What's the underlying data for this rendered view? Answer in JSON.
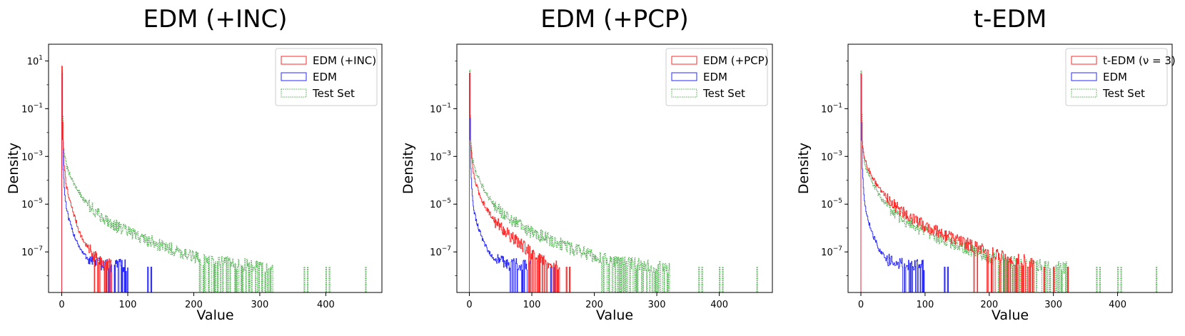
{
  "colors": {
    "red": "#ff2a2a",
    "blue": "#2a2aff",
    "green": "#2ca02c",
    "frame": "#000000",
    "legend_border": "#cccccc"
  },
  "chart_data": [
    {
      "type": "histogram",
      "title": "EDM (+INC)",
      "xlabel": "Value",
      "ylabel": "Density",
      "yscale": "log",
      "xlim": [
        -20,
        485
      ],
      "ylim": [
        2e-09,
        50
      ],
      "x_ticks": [
        {
          "value": 0,
          "label": "0"
        },
        {
          "value": 100,
          "label": "100"
        },
        {
          "value": 200,
          "label": "200"
        },
        {
          "value": 300,
          "label": "300"
        },
        {
          "value": 400,
          "label": "400"
        }
      ],
      "y_ticks": [
        {
          "value": 10,
          "base": "10",
          "exp": "1"
        },
        {
          "value": 0.1,
          "base": "10",
          "exp": "−1"
        },
        {
          "value": 0.001,
          "base": "10",
          "exp": "−3"
        },
        {
          "value": 1e-05,
          "base": "10",
          "exp": "−5"
        },
        {
          "value": 1e-07,
          "base": "10",
          "exp": "−7"
        }
      ],
      "legend_position": "upper-right",
      "series": [
        {
          "name": "EDM (+INC)",
          "color_key": "red",
          "line_style": "solid",
          "peak": 6,
          "points": [
            [
              0.5,
              6
            ],
            [
              1,
              0.05
            ],
            [
              2,
              0.002
            ],
            [
              4,
              0.0003
            ],
            [
              7,
              5e-05
            ],
            [
              10,
              2e-05
            ],
            [
              15,
              7e-06
            ],
            [
              20,
              2.5e-06
            ],
            [
              25,
              9e-07
            ],
            [
              30,
              4e-07
            ],
            [
              35,
              2.2e-07
            ],
            [
              40,
              1.5e-07
            ],
            [
              45,
              1e-07
            ],
            [
              50,
              7e-08
            ],
            [
              55,
              5e-08
            ],
            [
              60,
              4e-08
            ],
            [
              65,
              3e-08
            ],
            [
              70,
              3e-08
            ],
            [
              75,
              2.5e-08
            ]
          ],
          "max_x": 75
        },
        {
          "name": "EDM",
          "color_key": "blue",
          "line_style": "solid",
          "peak": 3,
          "points": [
            [
              0.5,
              3
            ],
            [
              1,
              0.01
            ],
            [
              2,
              0.0003
            ],
            [
              4,
              3e-05
            ],
            [
              7,
              6e-06
            ],
            [
              10,
              2.5e-06
            ],
            [
              15,
              9e-07
            ],
            [
              20,
              4e-07
            ],
            [
              25,
              2e-07
            ],
            [
              30,
              1e-07
            ],
            [
              35,
              7e-08
            ],
            [
              40,
              5e-08
            ],
            [
              50,
              4e-08
            ],
            [
              60,
              3e-08
            ],
            [
              80,
              3e-08
            ],
            [
              100,
              2.5e-08
            ]
          ],
          "max_x": 100,
          "sparse_x": [
            130,
            135
          ]
        },
        {
          "name": "Test Set",
          "color_key": "green",
          "line_style": "dotted",
          "peak": 4,
          "points": [
            [
              0.5,
              4
            ],
            [
              1,
              0.1
            ],
            [
              2,
              0.004
            ],
            [
              4,
              0.001
            ],
            [
              7,
              0.0004
            ],
            [
              10,
              0.00022
            ],
            [
              15,
              0.00011
            ],
            [
              20,
              6e-05
            ],
            [
              30,
              2e-05
            ],
            [
              40,
              9e-06
            ],
            [
              50,
              5e-06
            ],
            [
              60,
              3e-06
            ],
            [
              80,
              1.3e-06
            ],
            [
              100,
              7e-07
            ],
            [
              120,
              4e-07
            ],
            [
              140,
              2.5e-07
            ],
            [
              160,
              1.5e-07
            ],
            [
              180,
              1e-07
            ],
            [
              200,
              6e-08
            ],
            [
              220,
              4.5e-08
            ],
            [
              240,
              3.8e-08
            ],
            [
              260,
              3.2e-08
            ],
            [
              280,
              2.8e-08
            ],
            [
              300,
              2.5e-08
            ],
            [
              320,
              2.2e-08
            ]
          ],
          "max_x": 320,
          "sparse_x": [
            367,
            372,
            400,
            405,
            460
          ]
        }
      ]
    },
    {
      "type": "histogram",
      "title": "EDM (+PCP)",
      "xlabel": "Value",
      "ylabel": "Density",
      "yscale": "log",
      "xlim": [
        -20,
        485
      ],
      "ylim": [
        2e-09,
        50
      ],
      "x_ticks": [
        {
          "value": 0,
          "label": "0"
        },
        {
          "value": 100,
          "label": "100"
        },
        {
          "value": 200,
          "label": "200"
        },
        {
          "value": 300,
          "label": "300"
        },
        {
          "value": 400,
          "label": "400"
        }
      ],
      "y_ticks": [
        {
          "value": 0.1,
          "base": "10",
          "exp": "−1"
        },
        {
          "value": 0.001,
          "base": "10",
          "exp": "−3"
        },
        {
          "value": 1e-05,
          "base": "10",
          "exp": "−5"
        },
        {
          "value": 1e-07,
          "base": "10",
          "exp": "−7"
        }
      ],
      "legend_position": "upper-right",
      "series": [
        {
          "name": "EDM (+PCP)",
          "color_key": "red",
          "line_style": "solid",
          "peak": 3,
          "points": [
            [
              0.5,
              3
            ],
            [
              1,
              0.08
            ],
            [
              2,
              0.003
            ],
            [
              4,
              0.0006
            ],
            [
              7,
              0.00015
            ],
            [
              10,
              7e-05
            ],
            [
              15,
              3e-05
            ],
            [
              20,
              1.4e-05
            ],
            [
              30,
              5e-06
            ],
            [
              40,
              2e-06
            ],
            [
              50,
              1.1e-06
            ],
            [
              60,
              6e-07
            ],
            [
              70,
              3.5e-07
            ],
            [
              80,
              2.2e-07
            ],
            [
              90,
              1.4e-07
            ],
            [
              100,
              9e-08
            ],
            [
              110,
              6e-08
            ],
            [
              120,
              4e-08
            ],
            [
              130,
              3e-08
            ],
            [
              145,
              2.5e-08
            ]
          ],
          "max_x": 145,
          "sparse_x": [
            155,
            160
          ]
        },
        {
          "name": "EDM",
          "color_key": "blue",
          "line_style": "solid",
          "peak": 3,
          "points": [
            [
              0.5,
              3
            ],
            [
              1,
              0.01
            ],
            [
              2,
              0.0003
            ],
            [
              4,
              3e-05
            ],
            [
              7,
              6e-06
            ],
            [
              10,
              2.5e-06
            ],
            [
              15,
              9e-07
            ],
            [
              20,
              4e-07
            ],
            [
              25,
              2e-07
            ],
            [
              30,
              1e-07
            ],
            [
              35,
              7e-08
            ],
            [
              40,
              5e-08
            ],
            [
              50,
              4e-08
            ],
            [
              60,
              3e-08
            ],
            [
              80,
              3e-08
            ],
            [
              100,
              2.5e-08
            ]
          ],
          "max_x": 100,
          "sparse_x": [
            130,
            135
          ]
        },
        {
          "name": "Test Set",
          "color_key": "green",
          "line_style": "dotted",
          "peak": 4,
          "points": [
            [
              0.5,
              4
            ],
            [
              1,
              0.1
            ],
            [
              2,
              0.004
            ],
            [
              4,
              0.001
            ],
            [
              7,
              0.0004
            ],
            [
              10,
              0.00022
            ],
            [
              15,
              0.00011
            ],
            [
              20,
              6e-05
            ],
            [
              30,
              2e-05
            ],
            [
              40,
              9e-06
            ],
            [
              50,
              5e-06
            ],
            [
              60,
              3e-06
            ],
            [
              80,
              1.3e-06
            ],
            [
              100,
              7e-07
            ],
            [
              120,
              4e-07
            ],
            [
              140,
              2.5e-07
            ],
            [
              160,
              1.5e-07
            ],
            [
              180,
              1e-07
            ],
            [
              200,
              6e-08
            ],
            [
              220,
              4.5e-08
            ],
            [
              240,
              3.8e-08
            ],
            [
              260,
              3.2e-08
            ],
            [
              280,
              2.8e-08
            ],
            [
              300,
              2.5e-08
            ],
            [
              320,
              2.2e-08
            ]
          ],
          "max_x": 320,
          "sparse_x": [
            367,
            372,
            400,
            405,
            460
          ]
        }
      ]
    },
    {
      "type": "histogram",
      "title": "t-EDM",
      "xlabel": "Value",
      "ylabel": "Density",
      "yscale": "log",
      "xlim": [
        -20,
        485
      ],
      "ylim": [
        2e-09,
        50
      ],
      "x_ticks": [
        {
          "value": 0,
          "label": "0"
        },
        {
          "value": 100,
          "label": "100"
        },
        {
          "value": 200,
          "label": "200"
        },
        {
          "value": 300,
          "label": "300"
        },
        {
          "value": 400,
          "label": "400"
        }
      ],
      "y_ticks": [
        {
          "value": 0.1,
          "base": "10",
          "exp": "−1"
        },
        {
          "value": 0.001,
          "base": "10",
          "exp": "−3"
        },
        {
          "value": 1e-05,
          "base": "10",
          "exp": "−5"
        },
        {
          "value": 1e-07,
          "base": "10",
          "exp": "−7"
        }
      ],
      "legend_position": "upper-right",
      "series": [
        {
          "name": "t-EDM (ν = 3)",
          "color_key": "red",
          "line_style": "solid",
          "peak": 3,
          "points": [
            [
              0.5,
              3
            ],
            [
              1,
              0.05
            ],
            [
              2,
              0.003
            ],
            [
              4,
              0.0012
            ],
            [
              7,
              0.0006
            ],
            [
              10,
              0.00035
            ],
            [
              15,
              0.00018
            ],
            [
              20,
              0.0001
            ],
            [
              30,
              4e-05
            ],
            [
              40,
              2e-05
            ],
            [
              50,
              1e-05
            ],
            [
              60,
              6e-06
            ],
            [
              80,
              2.5e-06
            ],
            [
              100,
              1.2e-06
            ],
            [
              120,
              7e-07
            ],
            [
              140,
              4e-07
            ],
            [
              160,
              2.5e-07
            ],
            [
              180,
              1.5e-07
            ],
            [
              200,
              1e-07
            ],
            [
              220,
              7e-08
            ],
            [
              240,
              5e-08
            ],
            [
              260,
              4e-08
            ],
            [
              270,
              3e-08
            ]
          ],
          "max_x": 270,
          "sparse_x": [
            285,
            300,
            322
          ]
        },
        {
          "name": "EDM",
          "color_key": "blue",
          "line_style": "solid",
          "peak": 3,
          "points": [
            [
              0.5,
              3
            ],
            [
              1,
              0.01
            ],
            [
              2,
              0.0003
            ],
            [
              4,
              3e-05
            ],
            [
              7,
              6e-06
            ],
            [
              10,
              2.5e-06
            ],
            [
              15,
              9e-07
            ],
            [
              20,
              4e-07
            ],
            [
              25,
              2e-07
            ],
            [
              30,
              1e-07
            ],
            [
              35,
              7e-08
            ],
            [
              40,
              5e-08
            ],
            [
              50,
              4e-08
            ],
            [
              60,
              3e-08
            ],
            [
              80,
              3e-08
            ],
            [
              100,
              2.5e-08
            ]
          ],
          "max_x": 100,
          "sparse_x": [
            130,
            135
          ]
        },
        {
          "name": "Test Set",
          "color_key": "green",
          "line_style": "dotted",
          "peak": 4,
          "points": [
            [
              0.5,
              4
            ],
            [
              1,
              0.1
            ],
            [
              2,
              0.004
            ],
            [
              4,
              0.001
            ],
            [
              7,
              0.0004
            ],
            [
              10,
              0.00022
            ],
            [
              15,
              0.00011
            ],
            [
              20,
              6e-05
            ],
            [
              30,
              2e-05
            ],
            [
              40,
              9e-06
            ],
            [
              50,
              5e-06
            ],
            [
              60,
              3e-06
            ],
            [
              80,
              1.3e-06
            ],
            [
              100,
              7e-07
            ],
            [
              120,
              4e-07
            ],
            [
              140,
              2.5e-07
            ],
            [
              160,
              1.5e-07
            ],
            [
              180,
              1e-07
            ],
            [
              200,
              6e-08
            ],
            [
              220,
              4.5e-08
            ],
            [
              240,
              3.8e-08
            ],
            [
              260,
              3.2e-08
            ],
            [
              280,
              2.8e-08
            ],
            [
              300,
              2.5e-08
            ],
            [
              320,
              2.2e-08
            ]
          ],
          "max_x": 320,
          "sparse_x": [
            367,
            372,
            400,
            405,
            460
          ]
        }
      ]
    }
  ]
}
